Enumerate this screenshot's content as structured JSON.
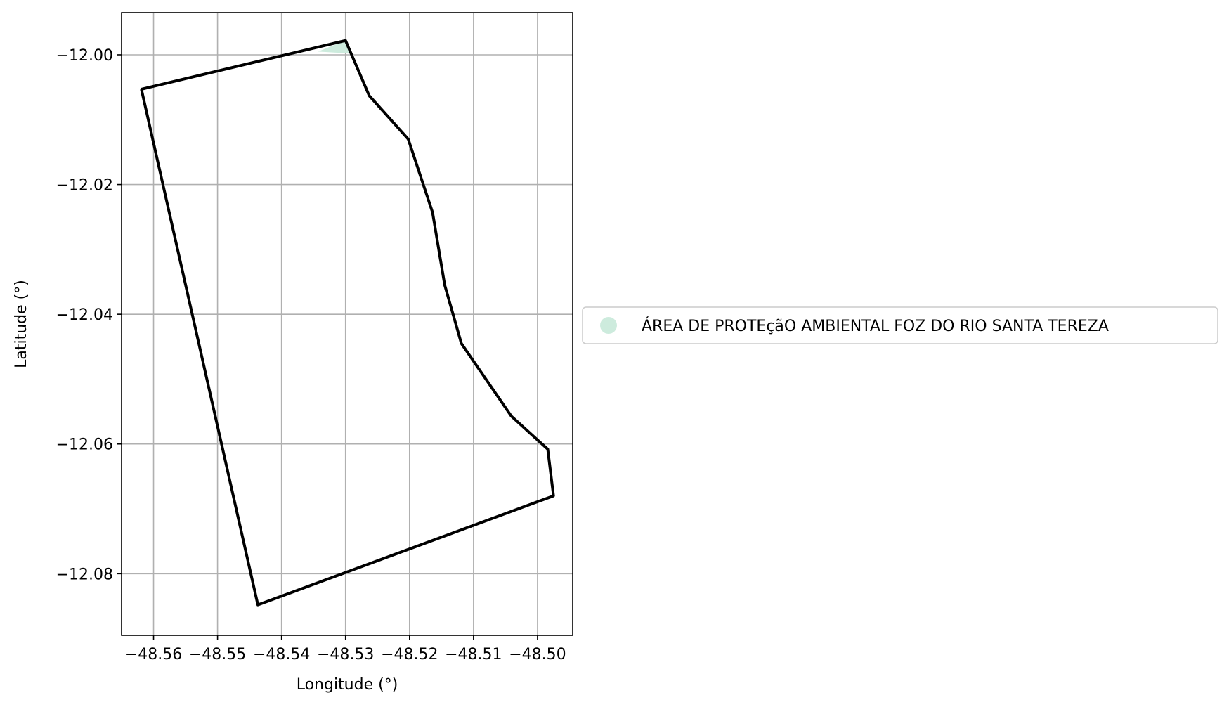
{
  "chart_data": {
    "type": "map",
    "xlabel": "Longitude (°)",
    "ylabel": "Latitude (°)",
    "xlim": [
      -48.565,
      -48.4945
    ],
    "ylim": [
      -12.0895,
      -11.9935
    ],
    "grid": true,
    "x_ticks": [
      -48.56,
      -48.55,
      -48.54,
      -48.53,
      -48.52,
      -48.51,
      -48.5
    ],
    "x_tick_labels": [
      "−48.56",
      "−48.55",
      "−48.54",
      "−48.53",
      "−48.52",
      "−48.51",
      "−48.50"
    ],
    "y_ticks": [
      -12.0,
      -12.02,
      -12.04,
      -12.06,
      -12.08
    ],
    "y_tick_labels": [
      "−12.00",
      "−12.02",
      "−12.04",
      "−12.06",
      "−12.08"
    ],
    "legend": {
      "placement": "center-right outside",
      "entries": [
        {
          "label": "ÁREA DE PROTEçãO AMBIENTAL FOZ DO RIO SANTA TEREZA",
          "color": "#cdebdd"
        }
      ]
    },
    "boundary": {
      "stroke": "#000000",
      "points": [
        [
          -48.5619,
          -12.0053
        ],
        [
          -48.53,
          -11.9978
        ],
        [
          -48.5263,
          -12.0063
        ],
        [
          -48.5202,
          -12.013
        ],
        [
          -48.5164,
          -12.0243
        ],
        [
          -48.5145,
          -12.0355
        ],
        [
          -48.5119,
          -12.0445
        ],
        [
          -48.5041,
          -12.0557
        ],
        [
          -48.4984,
          -12.0608
        ],
        [
          -48.4975,
          -12.068
        ],
        [
          -48.5437,
          -12.0848
        ],
        [
          -48.5619,
          -12.0053
        ]
      ]
    },
    "protected_area": {
      "fill": "#cdebdd",
      "points": [
        [
          -48.5343,
          -11.9995
        ],
        [
          -48.53,
          -11.9978
        ],
        [
          -48.5292,
          -11.9998
        ]
      ]
    }
  }
}
